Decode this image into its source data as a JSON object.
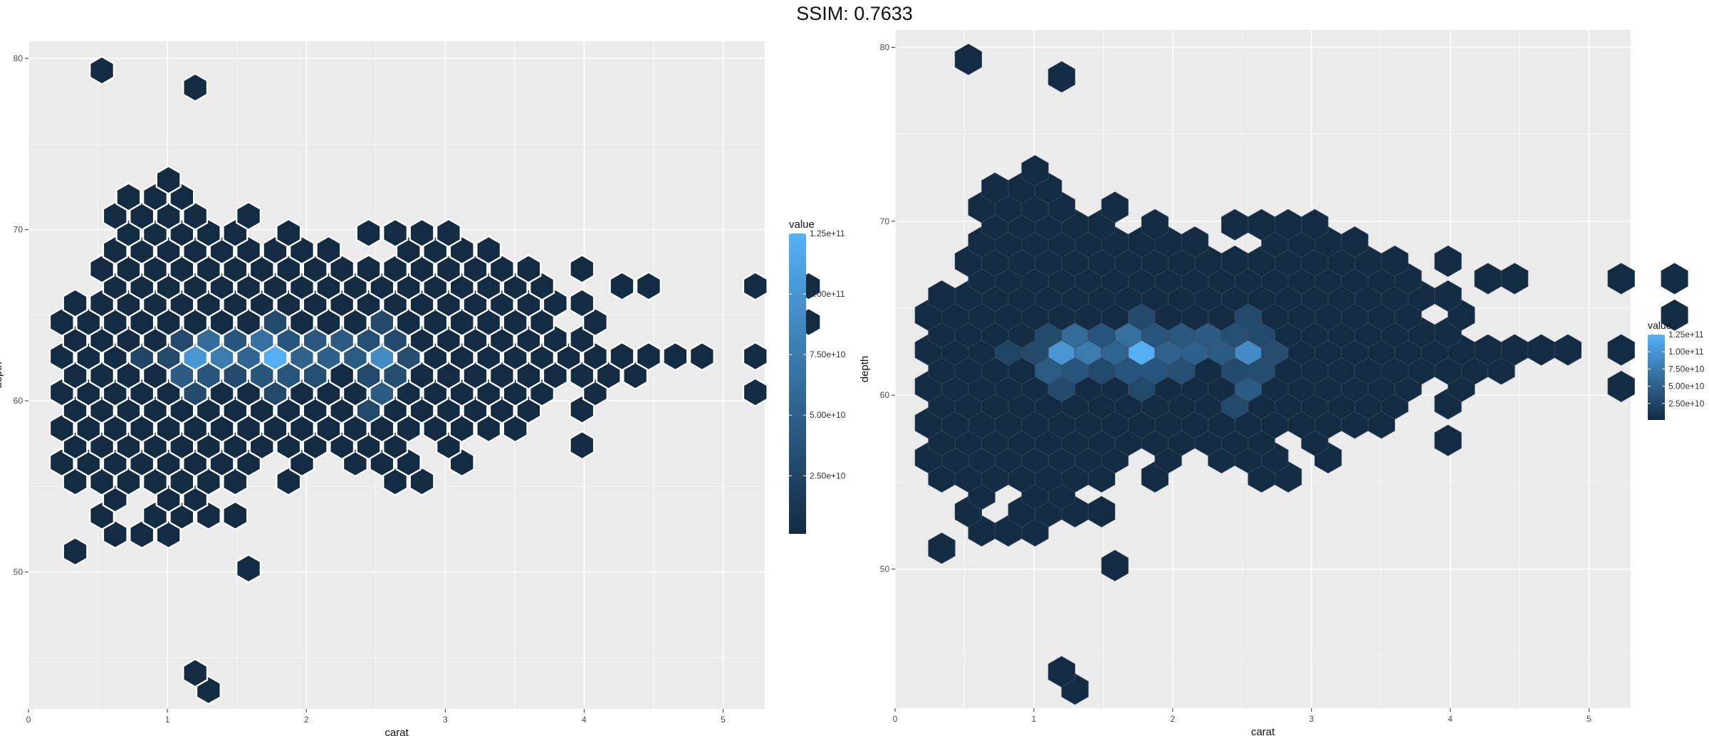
{
  "title": "SSIM: 0.7633",
  "colors": {
    "low": "#132b43",
    "high": "#56b1f7",
    "panel_bg": "#ebebeb",
    "grid": "#ffffff"
  },
  "chart_data": [
    {
      "type": "hexbin",
      "xlabel": "carat",
      "ylabel": "depth",
      "xlim": [
        0,
        5.3
      ],
      "ylim": [
        42,
        81
      ],
      "x_ticks": [
        "0",
        "1",
        "2",
        "3",
        "4",
        "5"
      ],
      "y_ticks": [
        "50",
        "60",
        "70",
        "80"
      ],
      "legend": {
        "title": "value",
        "position": "right",
        "labels": [
          "1.25e+11",
          "1.00e+11",
          "7.50e+10",
          "5.00e+10",
          "2.50e+10"
        ],
        "values": [
          125000000000.0,
          100000000000.0,
          75000000000.0,
          50000000000.0,
          25000000000.0
        ],
        "min": 1000000000.0,
        "max": 125000000000.0
      },
      "grid": true,
      "hex_outline": "white",
      "rows": [
        {
          "depth": 43.1,
          "offset": 1,
          "cols": [
            5
          ]
        },
        {
          "depth": 44.1,
          "offset": 0,
          "cols": [
            5
          ]
        },
        {
          "depth": 50.2,
          "offset": 0,
          "cols": [
            7
          ]
        },
        {
          "depth": 51.2,
          "offset": 1,
          "cols": [
            0
          ]
        },
        {
          "depth": 52.2,
          "offset": 0,
          "cols": [
            2,
            3,
            4
          ]
        },
        {
          "depth": 53.3,
          "offset": 1,
          "cols": [
            1,
            3,
            4,
            5,
            6
          ]
        },
        {
          "depth": 54.3,
          "offset": 0,
          "cols": [
            2,
            4,
            5
          ]
        },
        {
          "depth": 55.3,
          "offset": 1,
          "cols": [
            0,
            1,
            2,
            3,
            4,
            5,
            6,
            8,
            12,
            13
          ]
        },
        {
          "depth": 56.4,
          "offset": 0,
          "cols": [
            0,
            1,
            2,
            3,
            4,
            5,
            6,
            7,
            9,
            11,
            12,
            13,
            15
          ]
        },
        {
          "depth": 57.4,
          "offset": 1,
          "cols": [
            0,
            1,
            2,
            3,
            4,
            5,
            6,
            7,
            8,
            9,
            10,
            11,
            12,
            14,
            19
          ]
        },
        {
          "depth": 58.4,
          "offset": 0,
          "cols": [
            0,
            1,
            2,
            3,
            4,
            5,
            6,
            7,
            8,
            9,
            10,
            11,
            12,
            13,
            14,
            15,
            16,
            17
          ]
        },
        {
          "depth": 59.5,
          "offset": 1,
          "cols": [
            0,
            1,
            2,
            3,
            4,
            5,
            6,
            7,
            8,
            9,
            10,
            11,
            12,
            13,
            14,
            15,
            16,
            17,
            19
          ]
        },
        {
          "depth": 60.5,
          "offset": 0,
          "cols": [
            0,
            1,
            2,
            3,
            4,
            5,
            6,
            7,
            8,
            9,
            10,
            11,
            12,
            13,
            14,
            15,
            16,
            17,
            18,
            20,
            26
          ]
        },
        {
          "depth": 61.5,
          "offset": 1,
          "cols": [
            0,
            1,
            2,
            3,
            4,
            5,
            6,
            7,
            8,
            9,
            10,
            11,
            12,
            13,
            14,
            15,
            16,
            17,
            18,
            19,
            20,
            21
          ]
        },
        {
          "depth": 62.6,
          "offset": 0,
          "cols": [
            0,
            1,
            2,
            3,
            4,
            5,
            6,
            7,
            8,
            9,
            10,
            11,
            12,
            13,
            14,
            15,
            16,
            17,
            18,
            19,
            20,
            21,
            22,
            23,
            24,
            26
          ]
        },
        {
          "depth": 63.6,
          "offset": 1,
          "cols": [
            0,
            1,
            2,
            3,
            4,
            5,
            6,
            7,
            8,
            9,
            10,
            11,
            12,
            13,
            14,
            15,
            16,
            17,
            18,
            19
          ]
        },
        {
          "depth": 64.6,
          "offset": 0,
          "cols": [
            0,
            1,
            2,
            3,
            4,
            5,
            6,
            7,
            8,
            9,
            10,
            11,
            12,
            13,
            14,
            15,
            16,
            17,
            18,
            20,
            28
          ]
        },
        {
          "depth": 65.7,
          "offset": 1,
          "cols": [
            0,
            1,
            2,
            3,
            4,
            5,
            6,
            7,
            8,
            9,
            10,
            11,
            12,
            13,
            14,
            15,
            16,
            17,
            18,
            19,
            30,
            31
          ]
        },
        {
          "depth": 66.7,
          "offset": 0,
          "cols": [
            2,
            3,
            4,
            5,
            6,
            7,
            8,
            9,
            10,
            11,
            12,
            13,
            14,
            15,
            16,
            17,
            18,
            21,
            22,
            26,
            28
          ]
        },
        {
          "depth": 67.7,
          "offset": 1,
          "cols": [
            1,
            2,
            3,
            4,
            5,
            6,
            7,
            8,
            9,
            10,
            11,
            12,
            13,
            14,
            15,
            16,
            17,
            19
          ]
        },
        {
          "depth": 68.8,
          "offset": 0,
          "cols": [
            2,
            3,
            4,
            5,
            6,
            7,
            8,
            9,
            10,
            13,
            14,
            15,
            16
          ]
        },
        {
          "depth": 69.8,
          "offset": 1,
          "cols": [
            2,
            3,
            4,
            5,
            6,
            8,
            11,
            12,
            13,
            14
          ]
        },
        {
          "depth": 70.8,
          "offset": 0,
          "cols": [
            2,
            3,
            4,
            5,
            7
          ]
        },
        {
          "depth": 71.9,
          "offset": 1,
          "cols": [
            2,
            3,
            4
          ]
        },
        {
          "depth": 72.9,
          "offset": 0,
          "cols": [
            4
          ]
        },
        {
          "depth": 78.3,
          "offset": 0,
          "cols": [
            5
          ]
        },
        {
          "depth": 79.3,
          "offset": 1,
          "cols": [
            1
          ]
        }
      ],
      "hot_cells": [
        {
          "depth": 62.6,
          "col": 5,
          "v": 100000000000.0
        },
        {
          "depth": 62.6,
          "col": 6,
          "v": 75000000000.0
        },
        {
          "depth": 62.6,
          "col": 8,
          "v": 122000000000.0
        },
        {
          "depth": 62.6,
          "col": 9,
          "v": 52000000000.0
        },
        {
          "depth": 62.6,
          "col": 10,
          "v": 50000000000.0
        },
        {
          "depth": 62.6,
          "col": 12,
          "v": 90000000000.0
        },
        {
          "depth": 62.6,
          "col": 7,
          "v": 55000000000.0
        },
        {
          "depth": 62.6,
          "col": 11,
          "v": 45000000000.0
        },
        {
          "depth": 62.6,
          "col": 13,
          "v": 32000000000.0
        },
        {
          "depth": 63.6,
          "col": 5,
          "v": 60000000000.0
        },
        {
          "depth": 63.6,
          "col": 6,
          "v": 40000000000.0
        },
        {
          "depth": 63.6,
          "col": 7,
          "v": 65000000000.0
        },
        {
          "depth": 63.6,
          "col": 8,
          "v": 40000000000.0
        },
        {
          "depth": 63.6,
          "col": 9,
          "v": 42000000000.0
        },
        {
          "depth": 63.6,
          "col": 10,
          "v": 45000000000.0
        },
        {
          "depth": 63.6,
          "col": 11,
          "v": 35000000000.0
        },
        {
          "depth": 63.6,
          "col": 12,
          "v": 30000000000.0
        },
        {
          "depth": 63.6,
          "col": 4,
          "v": 30000000000.0
        },
        {
          "depth": 61.5,
          "col": 4,
          "v": 45000000000.0
        },
        {
          "depth": 61.5,
          "col": 5,
          "v": 40000000000.0
        },
        {
          "depth": 61.5,
          "col": 6,
          "v": 30000000000.0
        },
        {
          "depth": 61.5,
          "col": 7,
          "v": 40000000000.0
        },
        {
          "depth": 61.5,
          "col": 8,
          "v": 40000000000.0
        },
        {
          "depth": 61.5,
          "col": 9,
          "v": 35000000000.0
        },
        {
          "depth": 61.5,
          "col": 11,
          "v": 30000000000.0
        },
        {
          "depth": 61.5,
          "col": 12,
          "v": 32000000000.0
        },
        {
          "depth": 60.5,
          "col": 5,
          "v": 30000000000.0
        },
        {
          "depth": 60.5,
          "col": 8,
          "v": 28000000000.0
        },
        {
          "depth": 60.5,
          "col": 12,
          "v": 45000000000.0
        },
        {
          "depth": 64.6,
          "col": 8,
          "v": 30000000000.0
        },
        {
          "depth": 64.6,
          "col": 12,
          "v": 30000000000.0
        },
        {
          "depth": 59.5,
          "col": 11,
          "v": 28000000000.0
        },
        {
          "depth": 62.6,
          "col": 3,
          "v": 25000000000.0
        },
        {
          "depth": 62.6,
          "col": 4,
          "v": 30000000000.0
        }
      ]
    }
  ]
}
